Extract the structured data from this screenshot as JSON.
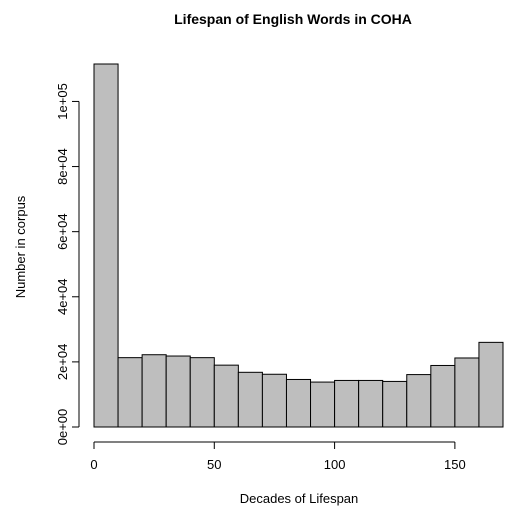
{
  "chart_data": {
    "type": "bar",
    "title": "Lifespan of English Words in COHA",
    "xlabel": "Decades of Lifespan",
    "ylabel": "Number in corpus",
    "bin_width": 10,
    "x_ticks": [
      0,
      50,
      100,
      150
    ],
    "x_tick_labels": [
      "0",
      "50",
      "100",
      "150"
    ],
    "xlim": [
      0,
      170
    ],
    "y_ticks": [
      0,
      20000,
      40000,
      60000,
      80000,
      100000
    ],
    "y_tick_labels": [
      "0e+00",
      "2e+04",
      "4e+04",
      "6e+04",
      "8e+04",
      "1e+05"
    ],
    "ylim": [
      0,
      111500
    ],
    "bins": [
      {
        "x_start": 0,
        "x_end": 10,
        "value": 111500
      },
      {
        "x_start": 10,
        "x_end": 20,
        "value": 21300
      },
      {
        "x_start": 20,
        "x_end": 30,
        "value": 22200
      },
      {
        "x_start": 30,
        "x_end": 40,
        "value": 21800
      },
      {
        "x_start": 40,
        "x_end": 50,
        "value": 21300
      },
      {
        "x_start": 50,
        "x_end": 60,
        "value": 19000
      },
      {
        "x_start": 60,
        "x_end": 70,
        "value": 16800
      },
      {
        "x_start": 70,
        "x_end": 80,
        "value": 16200
      },
      {
        "x_start": 80,
        "x_end": 90,
        "value": 14600
      },
      {
        "x_start": 90,
        "x_end": 100,
        "value": 13800
      },
      {
        "x_start": 100,
        "x_end": 110,
        "value": 14300
      },
      {
        "x_start": 110,
        "x_end": 120,
        "value": 14300
      },
      {
        "x_start": 120,
        "x_end": 130,
        "value": 14000
      },
      {
        "x_start": 130,
        "x_end": 140,
        "value": 16100
      },
      {
        "x_start": 140,
        "x_end": 150,
        "value": 18900
      },
      {
        "x_start": 150,
        "x_end": 160,
        "value": 21200
      },
      {
        "x_start": 160,
        "x_end": 170,
        "value": 26000
      }
    ],
    "grid": false,
    "bar_color": "#bebebe",
    "bar_border_color": "#000000"
  }
}
